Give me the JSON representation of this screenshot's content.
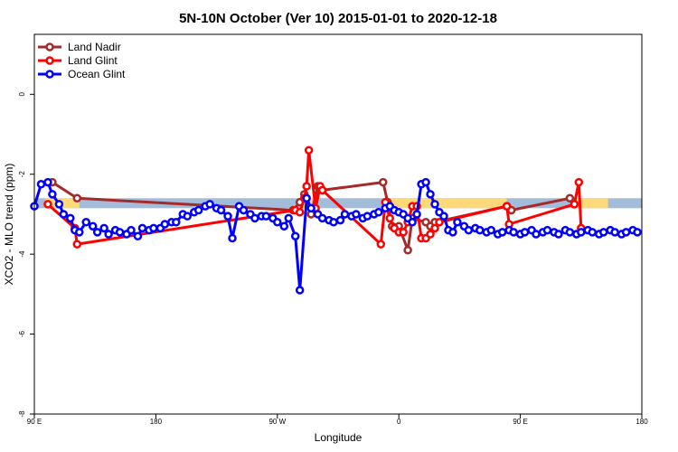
{
  "chart_data": {
    "type": "line",
    "title": "5N-10N October (Ver 10)   2015-01-01 to 2020-12-18",
    "xlabel": "Longitude",
    "ylabel": "XCO2 - MLO trend (ppm)",
    "xlim": [
      -90,
      180
    ],
    "ylim": [
      -8,
      1.5
    ],
    "x_ticks": [
      {
        "value": -90,
        "label": "90 E"
      },
      {
        "value": -36,
        "label": "180"
      },
      {
        "value": 18,
        "label": "90 W"
      },
      {
        "value": 72,
        "label": "0"
      },
      {
        "value": 126,
        "label": "90 E"
      },
      {
        "value": 180,
        "label": "180"
      }
    ],
    "y_ticks": [
      {
        "value": 0,
        "label": "0"
      },
      {
        "value": -2,
        "label": "-2"
      },
      {
        "value": -4,
        "label": "-4"
      },
      {
        "value": -6,
        "label": "-6"
      },
      {
        "value": -8,
        "label": "-8"
      }
    ],
    "grid": false,
    "legend_position": "top-left",
    "background_bands": [
      {
        "name": "ocean-band",
        "color": "#a3bcd9",
        "x_ranges": [
          [
            -90,
            180
          ]
        ],
        "y_range": [
          -2.85,
          -2.6
        ]
      },
      {
        "name": "land-band",
        "color": "#fdd97a",
        "x_ranges": [
          [
            -85,
            -70
          ],
          [
            28,
            36
          ],
          [
            65,
            120
          ],
          [
            150,
            165
          ]
        ],
        "y_range": [
          -2.85,
          -2.6
        ]
      }
    ],
    "series": [
      {
        "name": "Land Nadir",
        "color": "#a52a2a",
        "x": [
          -82,
          -71,
          25,
          28,
          30,
          33,
          36,
          38,
          65,
          67,
          69,
          72,
          76,
          78,
          84,
          86,
          88,
          120,
          122,
          148
        ],
        "y": [
          -2.2,
          -2.6,
          -2.9,
          -2.7,
          -2.5,
          -3.0,
          -2.3,
          -2.4,
          -2.2,
          -2.7,
          -3.3,
          -3.3,
          -3.9,
          -3.1,
          -3.2,
          -3.3,
          -3.2,
          -2.8,
          -2.9,
          -2.6
        ]
      },
      {
        "name": "Land Glint",
        "color": "#ff0000",
        "x": [
          -84,
          -72,
          -71,
          26,
          28,
          30,
          31,
          32,
          35,
          37,
          38,
          64,
          66,
          68,
          70,
          72,
          74,
          76,
          78,
          80,
          82,
          84,
          86,
          88,
          90,
          120,
          121,
          150,
          152,
          153
        ],
        "y": [
          -2.75,
          -3.35,
          -3.75,
          -2.9,
          -2.95,
          -2.6,
          -2.3,
          -1.4,
          -2.85,
          -2.3,
          -2.4,
          -3.75,
          -2.7,
          -3.1,
          -3.35,
          -3.45,
          -3.45,
          -3.2,
          -2.8,
          -2.8,
          -3.6,
          -3.6,
          -3.5,
          -3.35,
          -3.2,
          -2.8,
          -3.25,
          -2.75,
          -2.2,
          -3.35
        ]
      },
      {
        "name": "Ocean Glint",
        "color": "#0000ff",
        "x": [
          -90,
          -87,
          -84,
          -82,
          -79,
          -77,
          -74,
          -72,
          -70,
          -67,
          -64,
          -62,
          -59,
          -57,
          -54,
          -52,
          -49,
          -47,
          -44,
          -42,
          -39,
          -37,
          -34,
          -32,
          -29,
          -27,
          -24,
          -22,
          -19,
          -17,
          -14,
          -12,
          -9,
          -7,
          -4,
          -2,
          1,
          3,
          6,
          8,
          11,
          13,
          16,
          18,
          21,
          23,
          26,
          28,
          31,
          33,
          36,
          38,
          41,
          43,
          46,
          48,
          51,
          53,
          56,
          58,
          61,
          63,
          66,
          68,
          70,
          72,
          74,
          76,
          78,
          80,
          82,
          84,
          86,
          88,
          90,
          92,
          94,
          96,
          98,
          101,
          103,
          106,
          108,
          111,
          113,
          116,
          118,
          121,
          123,
          126,
          128,
          131,
          133,
          136,
          138,
          141,
          143,
          146,
          148,
          151,
          153,
          156,
          158,
          161,
          163,
          166,
          168,
          171,
          173,
          176,
          178
        ],
        "y": [
          -2.8,
          -2.25,
          -2.2,
          -2.5,
          -2.75,
          -3.0,
          -3.1,
          -3.4,
          -3.45,
          -3.2,
          -3.3,
          -3.45,
          -3.35,
          -3.5,
          -3.4,
          -3.45,
          -3.5,
          -3.4,
          -3.55,
          -3.35,
          -3.4,
          -3.35,
          -3.35,
          -3.25,
          -3.2,
          -3.2,
          -3.0,
          -3.05,
          -2.95,
          -2.9,
          -2.8,
          -2.75,
          -2.85,
          -2.9,
          -3.05,
          -3.6,
          -2.8,
          -2.9,
          -3.0,
          -3.1,
          -3.05,
          -3.05,
          -3.1,
          -3.2,
          -3.3,
          -3.1,
          -3.55,
          -4.9,
          -2.6,
          -2.85,
          -3.0,
          -3.1,
          -3.15,
          -3.2,
          -3.15,
          -3.0,
          -3.05,
          -3.0,
          -3.1,
          -3.05,
          -3.0,
          -2.95,
          -2.85,
          -2.8,
          -2.9,
          -2.95,
          -3.0,
          -3.1,
          -3.2,
          -3.0,
          -2.25,
          -2.2,
          -2.5,
          -2.75,
          -2.95,
          -3.05,
          -3.4,
          -3.45,
          -3.2,
          -3.3,
          -3.4,
          -3.35,
          -3.4,
          -3.45,
          -3.4,
          -3.5,
          -3.45,
          -3.4,
          -3.45,
          -3.5,
          -3.45,
          -3.4,
          -3.5,
          -3.45,
          -3.4,
          -3.45,
          -3.5,
          -3.4,
          -3.45,
          -3.5,
          -3.45,
          -3.4,
          -3.45,
          -3.5,
          -3.45,
          -3.4,
          -3.45,
          -3.5,
          -3.45,
          -3.4,
          -3.45
        ]
      }
    ]
  }
}
